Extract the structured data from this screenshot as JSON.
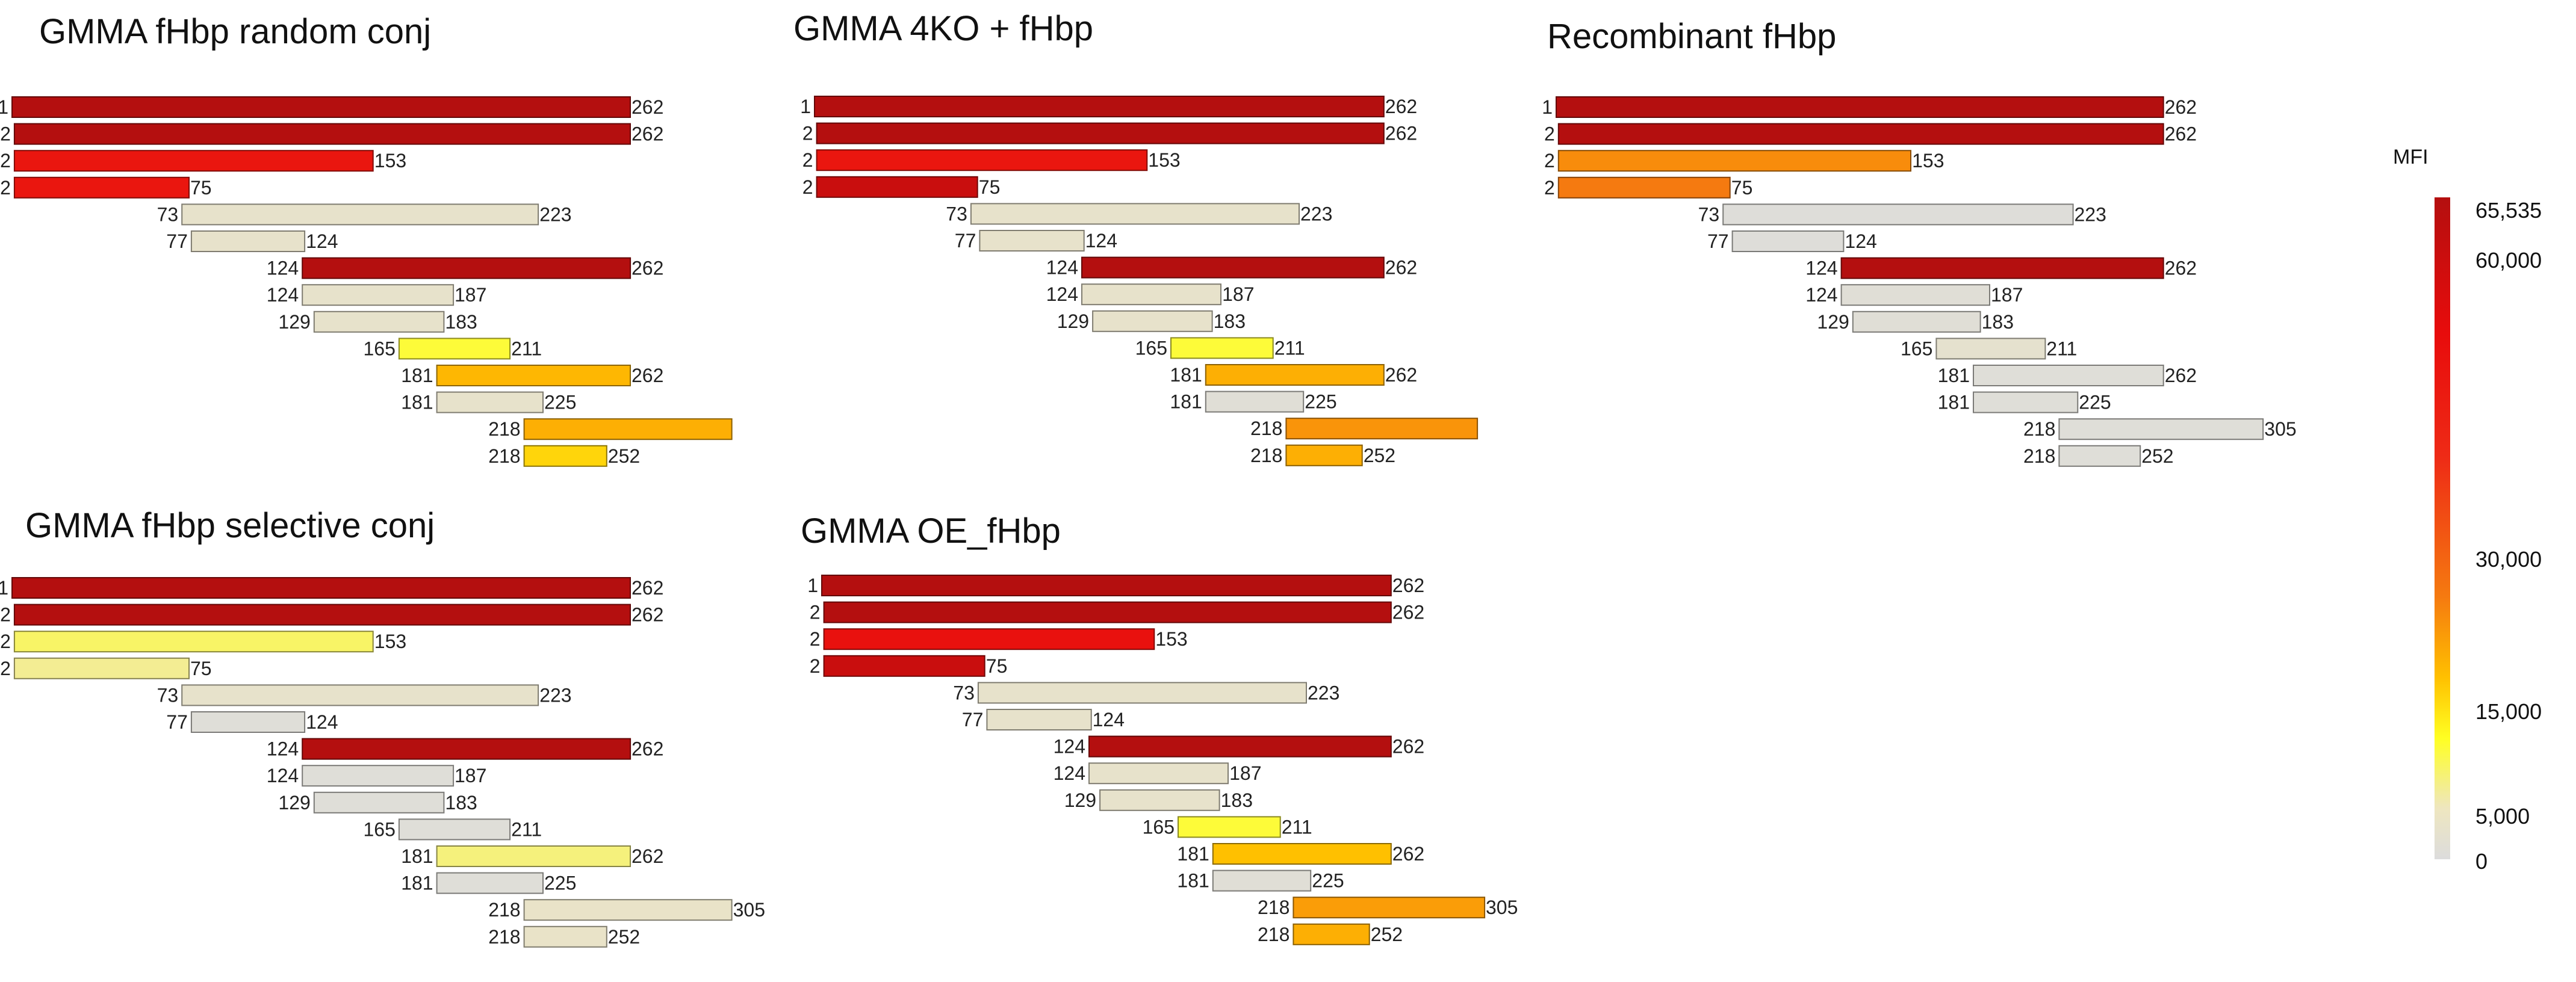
{
  "chart_data": {
    "type": "bar",
    "description_axis": "peptide start-end residue ranges; bar color encodes MFI",
    "rows": [
      {
        "start": 1,
        "end": 262
      },
      {
        "start": 2,
        "end": 262
      },
      {
        "start": 2,
        "end": 153
      },
      {
        "start": 2,
        "end": 75
      },
      {
        "start": 73,
        "end": 223
      },
      {
        "start": 77,
        "end": 124
      },
      {
        "start": 124,
        "end": 262
      },
      {
        "start": 124,
        "end": 187
      },
      {
        "start": 129,
        "end": 183
      },
      {
        "start": 165,
        "end": 211
      },
      {
        "start": 181,
        "end": 262
      },
      {
        "start": 181,
        "end": 225
      },
      {
        "start": 218,
        "end": 305
      },
      {
        "start": 218,
        "end": 252
      }
    ],
    "panels": [
      {
        "title": "GMMA fHbp random conj",
        "end_labels": [
          "262",
          "262",
          "153",
          "75",
          "223",
          "124",
          "262",
          "187",
          "183",
          "211",
          "262",
          "225",
          "",
          "252"
        ],
        "mfi": [
          65535,
          65535,
          48000,
          48000,
          3000,
          3000,
          65535,
          3000,
          3000,
          11000,
          19000,
          3000,
          20000,
          16000
        ]
      },
      {
        "title": "GMMA 4KO + fHbp",
        "end_labels": [
          "262",
          "262",
          "153",
          "75",
          "223",
          "124",
          "262",
          "187",
          "183",
          "211",
          "262",
          "225",
          "",
          "252"
        ],
        "mfi": [
          65535,
          65535,
          48000,
          60000,
          3000,
          3000,
          65535,
          3000,
          3000,
          11000,
          20000,
          1000,
          23000,
          20000
        ]
      },
      {
        "title": "Recombinant fHbp",
        "end_labels": [
          "262",
          "262",
          "153",
          "75",
          "223",
          "124",
          "262",
          "187",
          "183",
          "211",
          "262",
          "225",
          "305",
          "252"
        ],
        "mfi": [
          65535,
          65535,
          24000,
          26000,
          500,
          500,
          65535,
          1000,
          1000,
          2500,
          800,
          800,
          800,
          800
        ]
      },
      {
        "title": "GMMA fHbp selective conj",
        "end_labels": [
          "262",
          "262",
          "153",
          "75",
          "223",
          "124",
          "262",
          "187",
          "183",
          "211",
          "262",
          "225",
          "305",
          "252"
        ],
        "mfi": [
          65535,
          65535,
          9000,
          7000,
          3000,
          800,
          65535,
          800,
          800,
          800,
          8000,
          800,
          3500,
          3500
        ]
      },
      {
        "title": "GMMA OE_fHbp",
        "end_labels": [
          "262",
          "262",
          "153",
          "75",
          "223",
          "124",
          "262",
          "187",
          "183",
          "211",
          "262",
          "225",
          "305",
          "252"
        ],
        "mfi": [
          65535,
          65535,
          50000,
          60000,
          3000,
          3000,
          65535,
          3000,
          3000,
          11000,
          18000,
          1000,
          22000,
          20000
        ]
      }
    ],
    "colorbar": {
      "title": "MFI",
      "ticks": [
        "65,535",
        "60,000",
        "30,000",
        "15,000",
        "5,000",
        "0"
      ],
      "tick_values": [
        65535,
        60000,
        30000,
        15000,
        5000,
        0
      ],
      "stops": [
        {
          "value": 0,
          "color": "#dcdcdc"
        },
        {
          "value": 5000,
          "color": "#eee6c0"
        },
        {
          "value": 12000,
          "color": "#ffff22"
        },
        {
          "value": 18000,
          "color": "#ffc000"
        },
        {
          "value": 26000,
          "color": "#f57a10"
        },
        {
          "value": 40000,
          "color": "#ee2a16"
        },
        {
          "value": 52000,
          "color": "#e80c0c"
        },
        {
          "value": 65535,
          "color": "#b40f0f"
        }
      ]
    }
  }
}
